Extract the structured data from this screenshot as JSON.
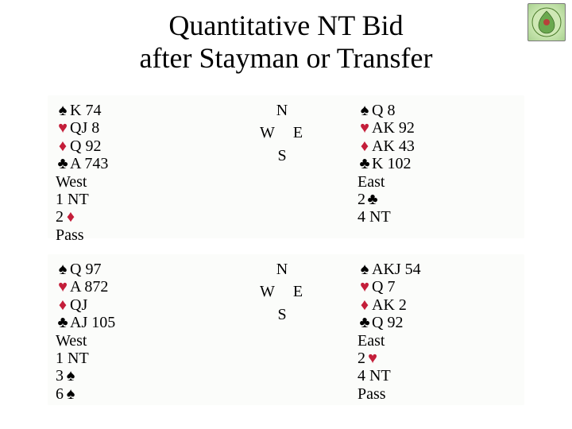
{
  "colors": {
    "background": "#ffffff",
    "deal_background": "#fbfcfa",
    "text": "#000000",
    "heart": "#c41e3a",
    "diamond": "#c41e3a",
    "spade": "#000000",
    "club": "#000000",
    "logo_border": "#7a7a7a"
  },
  "suit_symbols": {
    "spade": "♠",
    "heart": "♥",
    "diamond": "♦",
    "club": "♣"
  },
  "title_line1": "Quantitative NT Bid",
  "title_line2": "after Stayman or Transfer",
  "compass": {
    "n": "N",
    "w": "W",
    "e": "E",
    "s": "S"
  },
  "deals": [
    {
      "west": {
        "hand": {
          "spades": "K 74",
          "hearts": "QJ 8",
          "diamonds": "Q 92",
          "clubs": "A 743"
        },
        "label": "West",
        "bidding": [
          "1 NT",
          {
            "level": "2",
            "suit": "diamond"
          },
          "Pass"
        ]
      },
      "east": {
        "hand": {
          "spades": "Q 8",
          "hearts": "AK 92",
          "diamonds": "AK 43",
          "clubs": "K 102"
        },
        "label": "East",
        "bidding": [
          {
            "level": "2",
            "suit": "club"
          },
          "4 NT"
        ]
      }
    },
    {
      "west": {
        "hand": {
          "spades": "Q 97",
          "hearts": "A 872",
          "diamonds": "QJ",
          "clubs": "AJ 105"
        },
        "label": "West",
        "bidding": [
          "1 NT",
          {
            "level": "3",
            "suit": "spade"
          },
          {
            "level": "6",
            "suit": "spade"
          }
        ]
      },
      "east": {
        "hand": {
          "spades": "AKJ 54",
          "hearts": "Q 7",
          "diamonds": "AK 2",
          "clubs": "Q 92"
        },
        "label": "East",
        "bidding": [
          {
            "level": "2",
            "suit": "heart"
          },
          "4 NT",
          "Pass"
        ]
      }
    }
  ]
}
